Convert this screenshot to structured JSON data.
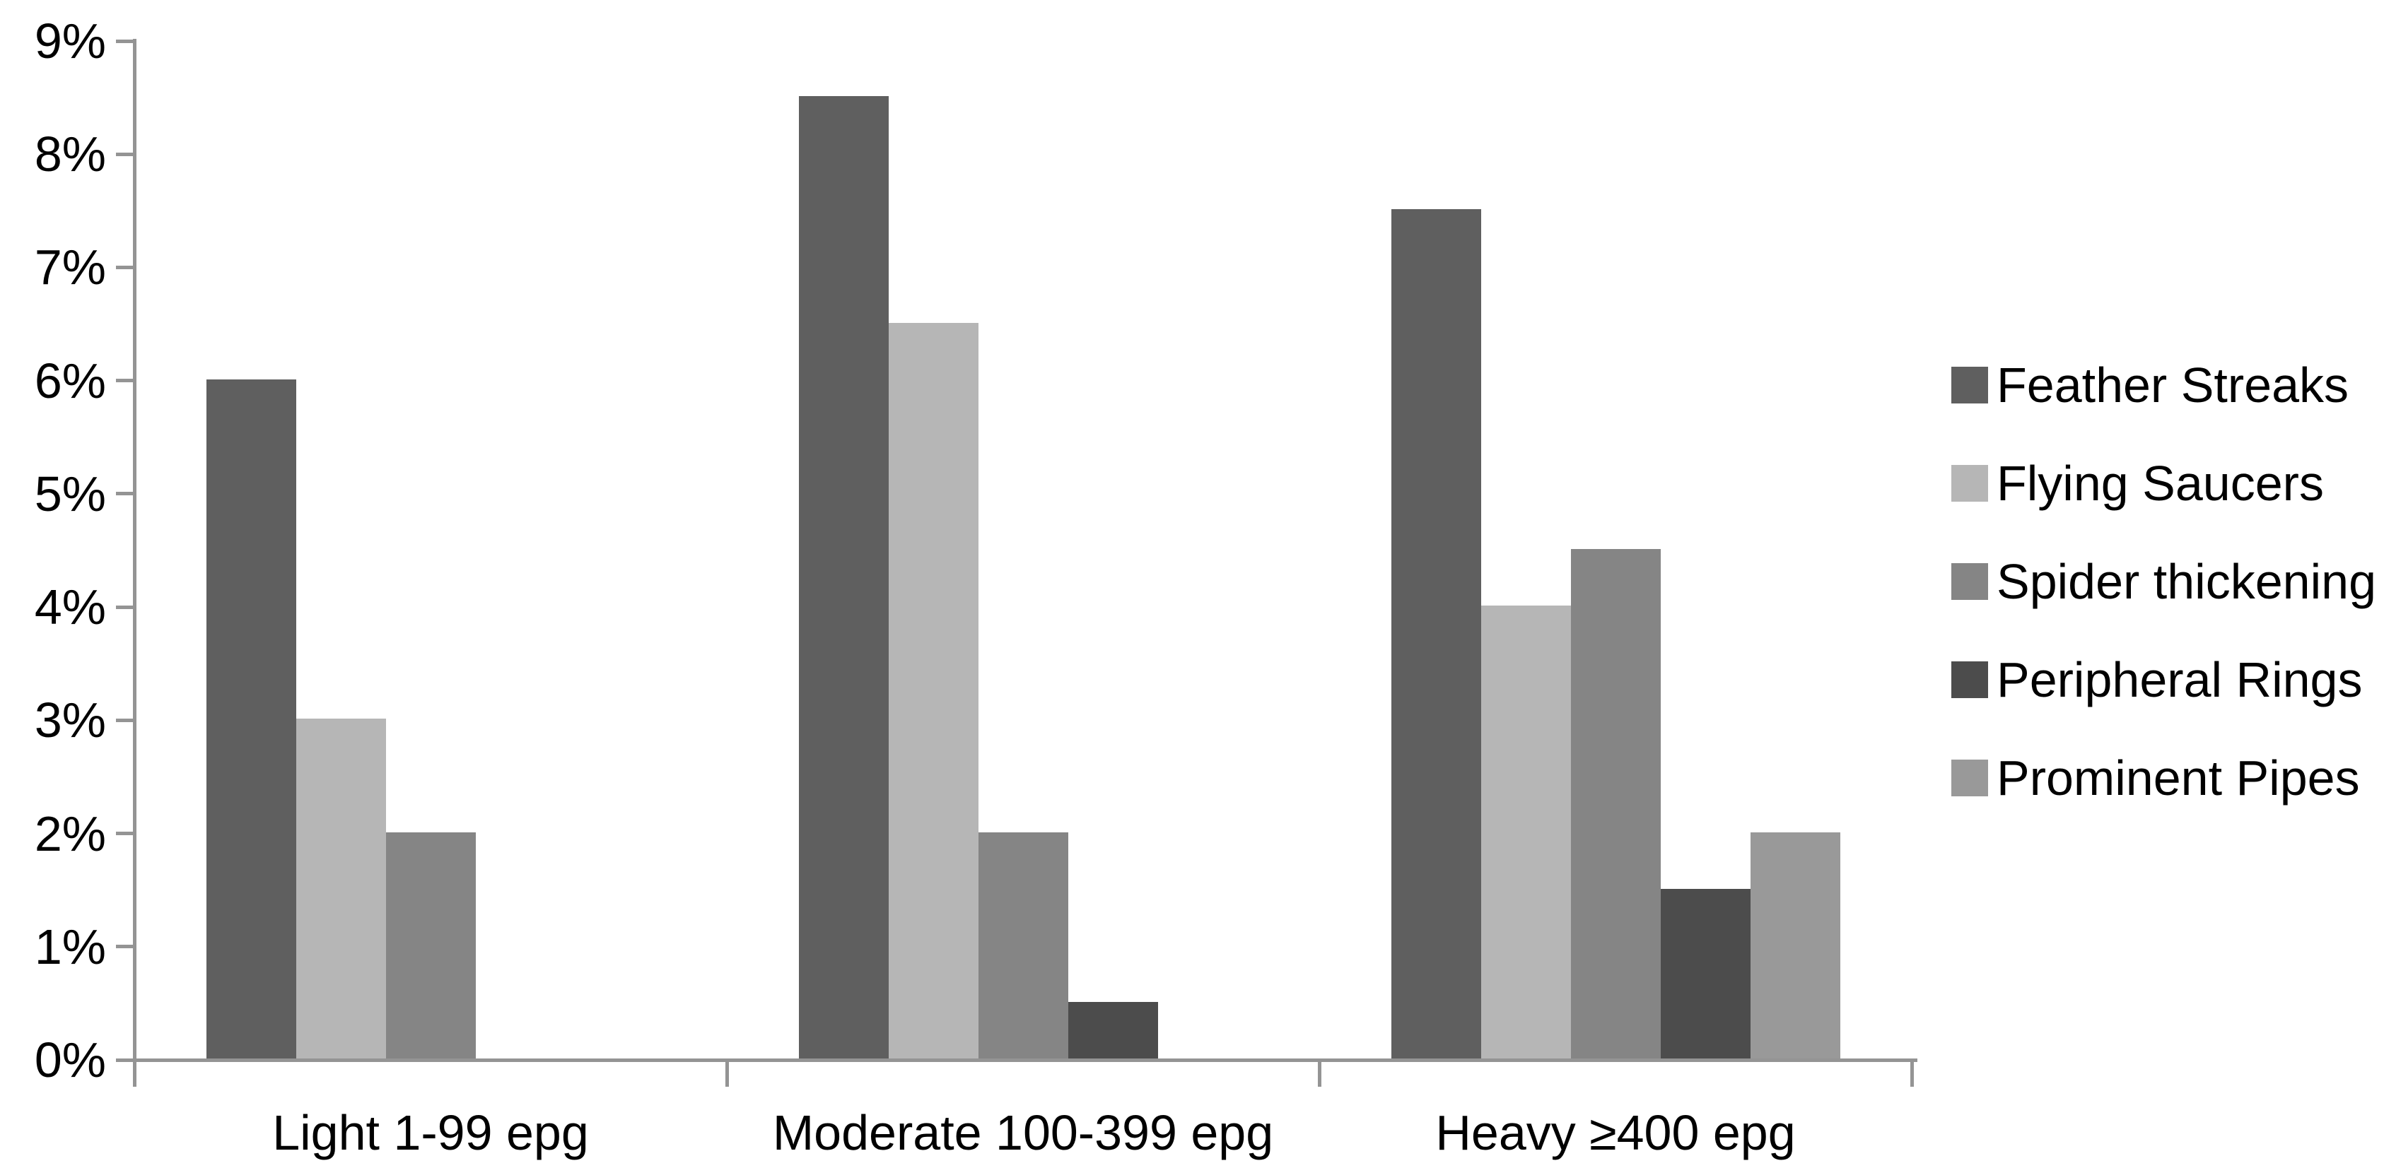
{
  "chart_data": {
    "type": "bar",
    "categories": [
      "Light 1-99 epg",
      "Moderate 100-399 epg",
      "Heavy ≥400 epg"
    ],
    "series": [
      {
        "name": "Feather Streaks",
        "color": "#5F5F5F",
        "values": [
          6,
          8.5,
          7.5
        ]
      },
      {
        "name": "Flying Saucers",
        "color": "#B6B6B6",
        "values": [
          3,
          6.5,
          4
        ]
      },
      {
        "name": "Spider thickening",
        "color": "#858585",
        "values": [
          2,
          2,
          4.5
        ]
      },
      {
        "name": "Peripheral Rings",
        "color": "#4C4C4C",
        "values": [
          0,
          0.5,
          1.5
        ]
      },
      {
        "name": "Prominent Pipes",
        "color": "#999999",
        "values": [
          0,
          0,
          2
        ]
      }
    ],
    "xlabel": "",
    "ylabel": "",
    "y_axis": {
      "min": 0,
      "max": 9,
      "step": 1,
      "tick_labels": [
        "0%",
        "1%",
        "2%",
        "3%",
        "4%",
        "5%",
        "6%",
        "7%",
        "8%",
        "9%"
      ]
    },
    "legend_position": "right",
    "grid": false,
    "axis_color": "#949494",
    "text_color": "#000000",
    "background_color": "#FFFFFF"
  }
}
